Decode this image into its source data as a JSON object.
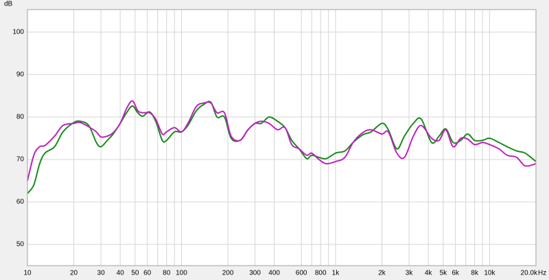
{
  "chart_data": {
    "type": "line",
    "x_unit": "Hz",
    "y_unit": "dB",
    "x": [
      10,
      11,
      12,
      13,
      15,
      17,
      20,
      22,
      25,
      28,
      30,
      33,
      36,
      40,
      44,
      48,
      52,
      56,
      62,
      68,
      75,
      80,
      90,
      100,
      110,
      125,
      140,
      155,
      170,
      190,
      210,
      240,
      270,
      300,
      330,
      370,
      420,
      470,
      520,
      580,
      650,
      700,
      780,
      870,
      1000,
      1150,
      1300,
      1500,
      1700,
      2000,
      2200,
      2500,
      2800,
      3200,
      3600,
      4200,
      4700,
      5200,
      5800,
      6500,
      7200,
      8000,
      9000,
      10000,
      11500,
      13000,
      15000,
      17000,
      20000
    ],
    "series": [
      {
        "color": "#1a8a1a",
        "values": [
          62,
          64,
          69,
          71.5,
          73,
          76.5,
          78.7,
          79,
          78,
          74,
          73,
          74.5,
          76,
          78.5,
          81,
          82.6,
          81,
          80.2,
          81.2,
          79,
          74.5,
          74.5,
          76.5,
          76.5,
          78,
          81.5,
          83,
          83.5,
          80,
          80,
          75,
          74.5,
          77,
          78.5,
          78.5,
          80,
          79,
          77.5,
          74.5,
          72.5,
          70.2,
          71,
          70.5,
          70.2,
          71.5,
          72,
          74,
          75.8,
          76.5,
          78.5,
          77,
          72.5,
          75.5,
          78.5,
          79.5,
          74,
          75.5,
          77.2,
          74,
          74.5,
          76,
          74.5,
          74.5,
          75,
          74,
          73,
          72,
          71.5,
          69.5
        ]
      },
      {
        "color": "#c020c0",
        "values": [
          65,
          71,
          73,
          73.3,
          75.5,
          78,
          78.5,
          78.7,
          77.7,
          76.5,
          75.3,
          75.5,
          76.3,
          78.5,
          82,
          83.8,
          81.5,
          81,
          81,
          79.5,
          76,
          76.5,
          77.5,
          76.5,
          78.5,
          82.5,
          83.3,
          83.3,
          81,
          81,
          75.5,
          74.5,
          77,
          78.5,
          79,
          78.5,
          77,
          77.5,
          73.5,
          72.5,
          71,
          71.5,
          70,
          69,
          69.5,
          70.5,
          74,
          76.3,
          77,
          76,
          76.5,
          71.5,
          70.5,
          75.5,
          78,
          75,
          74.5,
          77,
          73,
          75,
          74.8,
          73.5,
          74,
          73.5,
          72.5,
          71,
          70.5,
          68.5,
          69
        ]
      }
    ],
    "xlog": true,
    "xlim": [
      10,
      20000
    ],
    "ylim": [
      45,
      105.3
    ],
    "xticks": [
      10,
      20,
      30,
      40,
      50,
      60,
      80,
      100,
      200,
      300,
      400,
      600,
      800,
      {
        "value": 1000,
        "label": "1k"
      },
      {
        "value": 2000,
        "label": "2k"
      },
      {
        "value": 3000,
        "label": "3k"
      },
      {
        "value": 4000,
        "label": "4k"
      },
      {
        "value": 5000,
        "label": "5k"
      },
      {
        "value": 6000,
        "label": "6k"
      },
      {
        "value": 8000,
        "label": "8k"
      },
      {
        "value": 10000,
        "label": "10k"
      },
      {
        "value": 20000,
        "label": "20.0k"
      }
    ],
    "xminor": [
      70,
      90,
      700,
      900,
      7000,
      9000
    ],
    "yticks": [
      50,
      60,
      70,
      80,
      90,
      100
    ],
    "grid": true
  }
}
